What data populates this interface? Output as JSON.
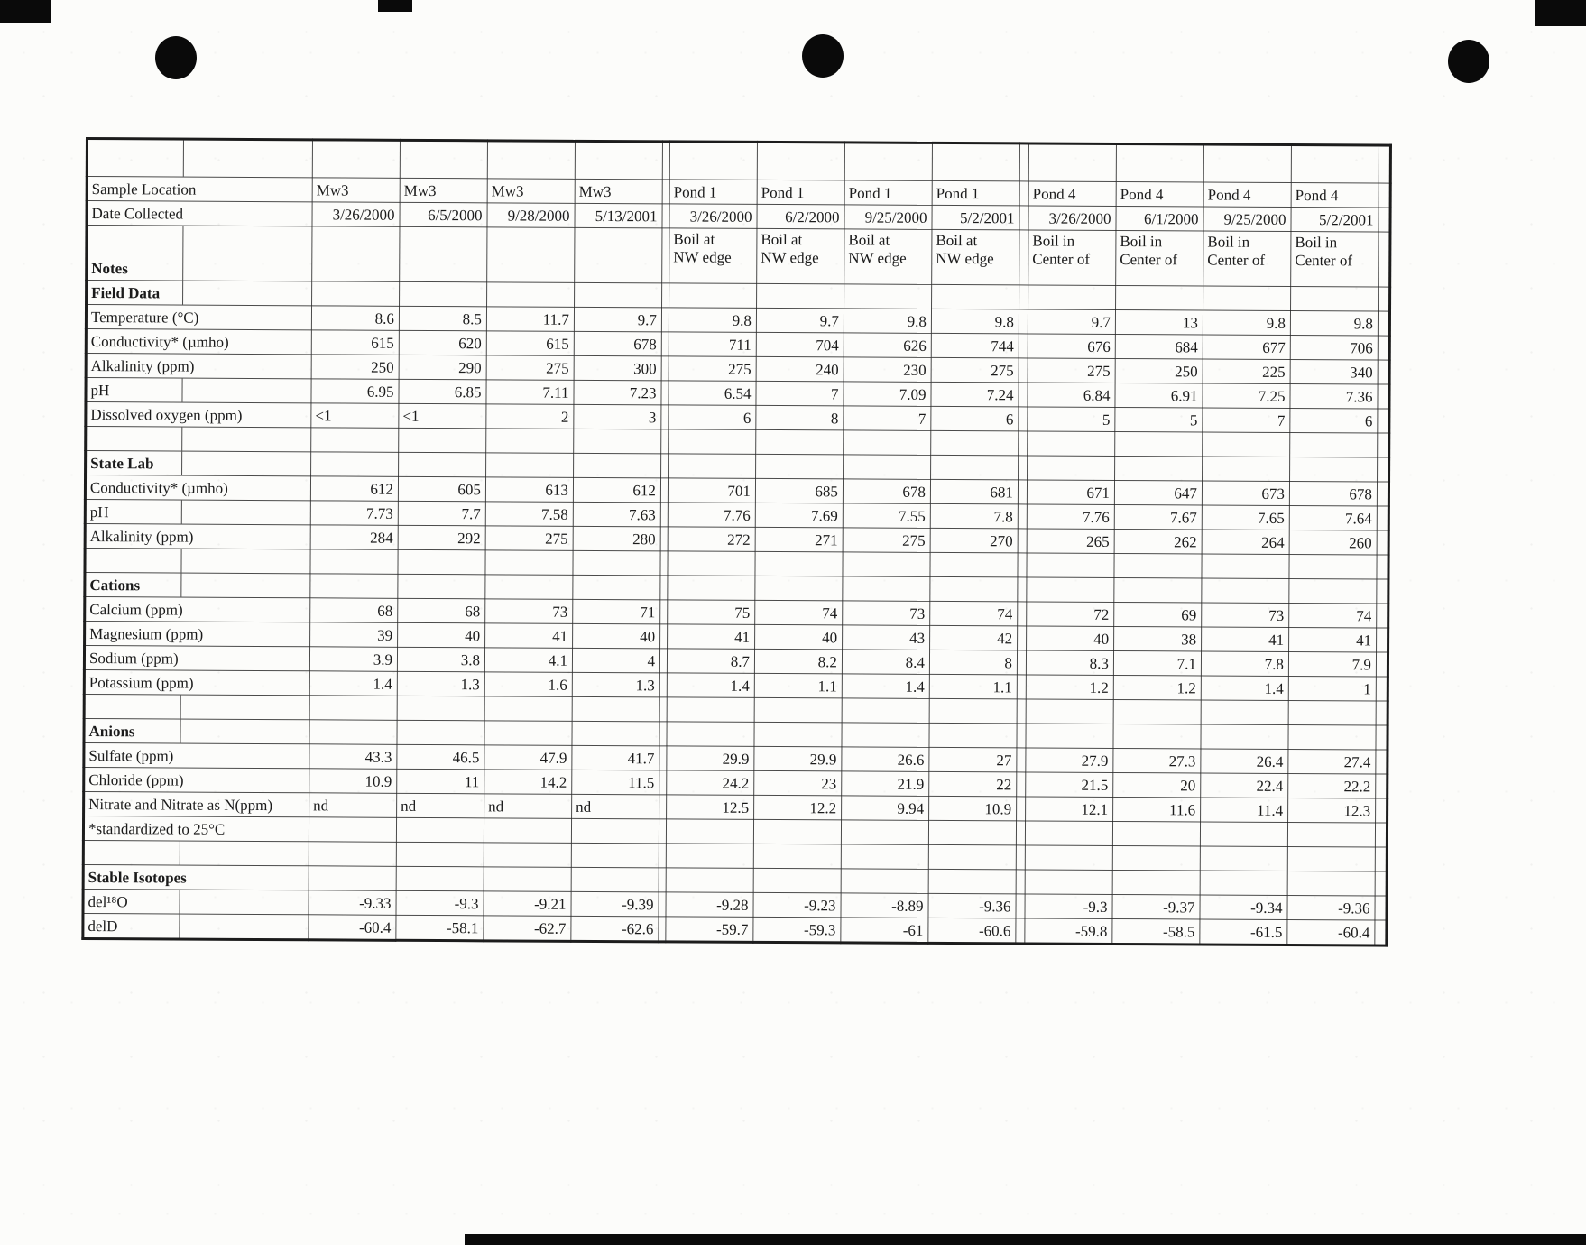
{
  "page": {
    "paper_color": "#fcfcfa",
    "ink_color": "#1b1b1b",
    "grid_line_color": "#232323",
    "artifact_color": "#0a0a0a",
    "hole_punch_count": 3
  },
  "table": {
    "column_group_labels": [
      "Mw3",
      "Pond 1",
      "Pond 4"
    ],
    "footnote": "*standardized to 25°C",
    "rows": [
      {
        "kind": "spacer",
        "label": ""
      },
      {
        "kind": "header",
        "label": "Sample Location",
        "values": [
          "Mw3",
          "Mw3",
          "Mw3",
          "Mw3",
          "Pond 1",
          "Pond 1",
          "Pond 1",
          "Pond 1",
          "Pond 4",
          "Pond 4",
          "Pond 4",
          "Pond 4"
        ]
      },
      {
        "kind": "header",
        "label": "Date Collected",
        "values": [
          "3/26/2000",
          "6/5/2000",
          "9/28/2000",
          "5/13/2001",
          "3/26/2000",
          "6/2/2000",
          "9/25/2000",
          "5/2/2001",
          "3/26/2000",
          "6/1/2000",
          "9/25/2000",
          "5/2/2001"
        ]
      },
      {
        "kind": "notes",
        "label": "Notes",
        "values": [
          "",
          "",
          "",
          "",
          "Boil at\nNW edge",
          "Boil at\nNW edge",
          "Boil at\nNW edge",
          "Boil at\nNW edge",
          "Boil in\nCenter of",
          "Boil in\nCenter of",
          "Boil in\nCenter of",
          "Boil in\nCenter of"
        ]
      },
      {
        "kind": "section",
        "label": "Field Data"
      },
      {
        "kind": "data",
        "label": "Temperature (°C)",
        "values": [
          "8.6",
          "8.5",
          "11.7",
          "9.7",
          "9.8",
          "9.7",
          "9.8",
          "9.8",
          "9.7",
          "13",
          "9.8",
          "9.8"
        ]
      },
      {
        "kind": "data",
        "label": "Conductivity* (µmho)",
        "values": [
          "615",
          "620",
          "615",
          "678",
          "711",
          "704",
          "626",
          "744",
          "676",
          "684",
          "677",
          "706"
        ]
      },
      {
        "kind": "data",
        "label": "Alkalinity (ppm)",
        "values": [
          "250",
          "290",
          "275",
          "300",
          "275",
          "240",
          "230",
          "275",
          "275",
          "250",
          "225",
          "340"
        ]
      },
      {
        "kind": "data",
        "label": "pH",
        "values": [
          "6.95",
          "6.85",
          "7.11",
          "7.23",
          "6.54",
          "7",
          "7.09",
          "7.24",
          "6.84",
          "6.91",
          "7.25",
          "7.36"
        ]
      },
      {
        "kind": "data",
        "label": "Dissolved oxygen (ppm)",
        "values": [
          "<1",
          "<1",
          "2",
          "3",
          "6",
          "8",
          "7",
          "6",
          "5",
          "5",
          "7",
          "6"
        ]
      },
      {
        "kind": "blank",
        "label": ""
      },
      {
        "kind": "section",
        "label": "State Lab"
      },
      {
        "kind": "data",
        "label": "Conductivity*  (µmho)",
        "values": [
          "612",
          "605",
          "613",
          "612",
          "701",
          "685",
          "678",
          "681",
          "671",
          "647",
          "673",
          "678"
        ]
      },
      {
        "kind": "data",
        "label": "pH",
        "values": [
          "7.73",
          "7.7",
          "7.58",
          "7.63",
          "7.76",
          "7.69",
          "7.55",
          "7.8",
          "7.76",
          "7.67",
          "7.65",
          "7.64"
        ]
      },
      {
        "kind": "data",
        "label": "Alkalinity (ppm)",
        "values": [
          "284",
          "292",
          "275",
          "280",
          "272",
          "271",
          "275",
          "270",
          "265",
          "262",
          "264",
          "260"
        ]
      },
      {
        "kind": "blank",
        "label": ""
      },
      {
        "kind": "section",
        "label": "Cations"
      },
      {
        "kind": "data",
        "label": "Calcium (ppm)",
        "values": [
          "68",
          "68",
          "73",
          "71",
          "75",
          "74",
          "73",
          "74",
          "72",
          "69",
          "73",
          "74"
        ]
      },
      {
        "kind": "data",
        "label": "Magnesium (ppm)",
        "values": [
          "39",
          "40",
          "41",
          "40",
          "41",
          "40",
          "43",
          "42",
          "40",
          "38",
          "41",
          "41"
        ]
      },
      {
        "kind": "data",
        "label": "Sodium (ppm)",
        "values": [
          "3.9",
          "3.8",
          "4.1",
          "4",
          "8.7",
          "8.2",
          "8.4",
          "8",
          "8.3",
          "7.1",
          "7.8",
          "7.9"
        ]
      },
      {
        "kind": "data",
        "label": "Potassium (ppm)",
        "values": [
          "1.4",
          "1.3",
          "1.6",
          "1.3",
          "1.4",
          "1.1",
          "1.4",
          "1.1",
          "1.2",
          "1.2",
          "1.4",
          "1"
        ]
      },
      {
        "kind": "blank",
        "label": ""
      },
      {
        "kind": "section",
        "label": "Anions"
      },
      {
        "kind": "data",
        "label": "Sulfate (ppm)",
        "values": [
          "43.3",
          "46.5",
          "47.9",
          "41.7",
          "29.9",
          "29.9",
          "26.6",
          "27",
          "27.9",
          "27.3",
          "26.4",
          "27.4"
        ]
      },
      {
        "kind": "data",
        "label": "Chloride (ppm)",
        "values": [
          "10.9",
          "11",
          "14.2",
          "11.5",
          "24.2",
          "23",
          "21.9",
          "22",
          "21.5",
          "20",
          "22.4",
          "22.2"
        ]
      },
      {
        "kind": "data",
        "label": "Nitrate and Nitrate as N(ppm)",
        "values": [
          "nd",
          "nd",
          "nd",
          "nd",
          "12.5",
          "12.2",
          "9.94",
          "10.9",
          "12.1",
          "11.6",
          "11.4",
          "12.3"
        ]
      },
      {
        "kind": "data",
        "label": "*standardized to 25°C"
      },
      {
        "kind": "blank",
        "label": ""
      },
      {
        "kind": "section",
        "label": "Stable Isotopes"
      },
      {
        "kind": "data",
        "label": "del¹⁸O",
        "values": [
          "-9.33",
          "-9.3",
          "-9.21",
          "-9.39",
          "-9.28",
          "-9.23",
          "-8.89",
          "-9.36",
          "-9.3",
          "-9.37",
          "-9.34",
          "-9.36"
        ]
      },
      {
        "kind": "data",
        "label": "delD",
        "values": [
          "-60.4",
          "-58.1",
          "-62.7",
          "-62.6",
          "-59.7",
          "-59.3",
          "-61",
          "-60.6",
          "-59.8",
          "-58.5",
          "-61.5",
          "-60.4"
        ]
      }
    ]
  }
}
